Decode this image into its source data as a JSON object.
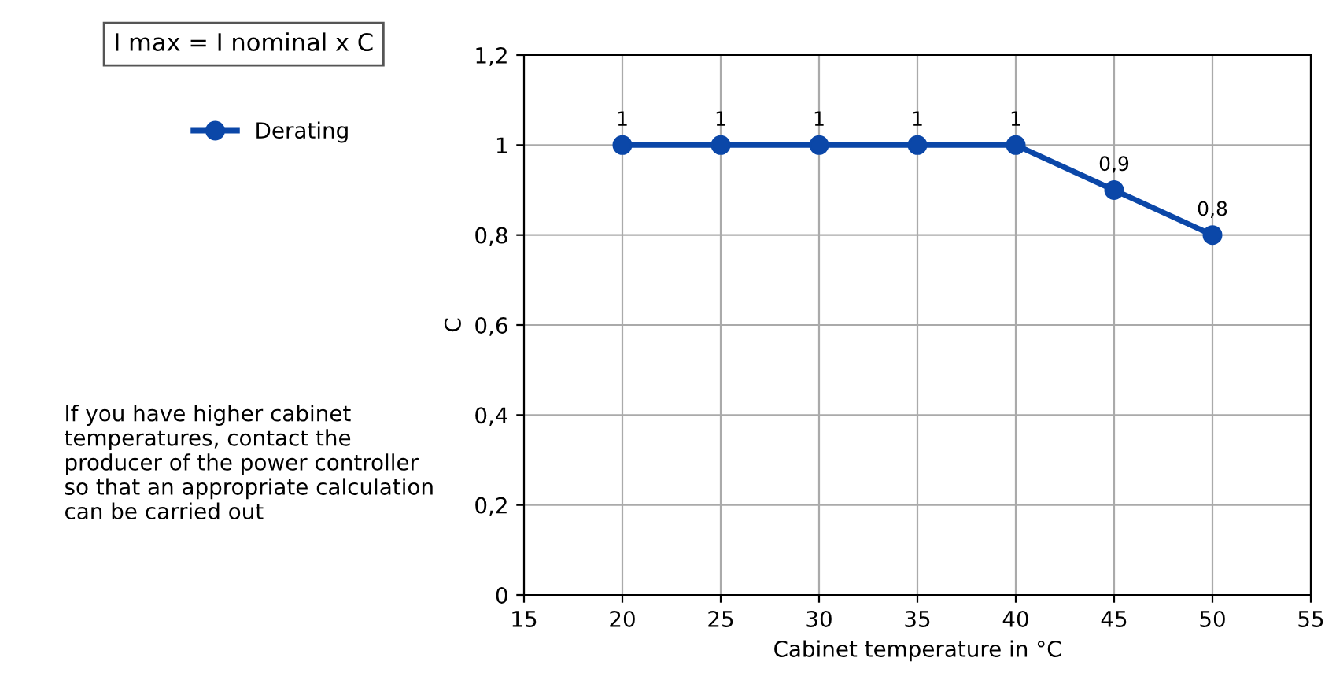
{
  "chart_data": {
    "type": "line",
    "xlabel": "Cabinet temperature in °C",
    "ylabel": "C",
    "x": [
      20,
      25,
      30,
      35,
      40,
      45,
      50
    ],
    "series": [
      {
        "name": "Derating",
        "color": "#0b47a8",
        "values": [
          1,
          1,
          1,
          1,
          1,
          0.9,
          0.8
        ],
        "value_labels": [
          "1",
          "1",
          "1",
          "1",
          "1",
          "0,9",
          "0,8"
        ]
      }
    ],
    "xlim": [
      15,
      55
    ],
    "xticks": [
      15,
      20,
      25,
      30,
      35,
      40,
      45,
      50,
      55
    ],
    "ylim": [
      0,
      1.2
    ],
    "yticks": [
      0,
      {
        "value": 0.2,
        "label": "0,2"
      },
      {
        "value": 0.4,
        "label": "0,4"
      },
      {
        "value": 0.6,
        "label": "0,6"
      },
      {
        "value": 0.8,
        "label": "0,8"
      },
      1,
      {
        "value": 1.2,
        "label": "1,2"
      }
    ],
    "grid": true,
    "legend": "top left",
    "marker": "circle",
    "line_style": "solid",
    "annotations": [
      "I max = I nominal x C",
      "If you have higher cabinet\ntemperatures, contact the\nproducer of the power controller\nso that an appropriate calculation\ncan be carried out"
    ]
  }
}
